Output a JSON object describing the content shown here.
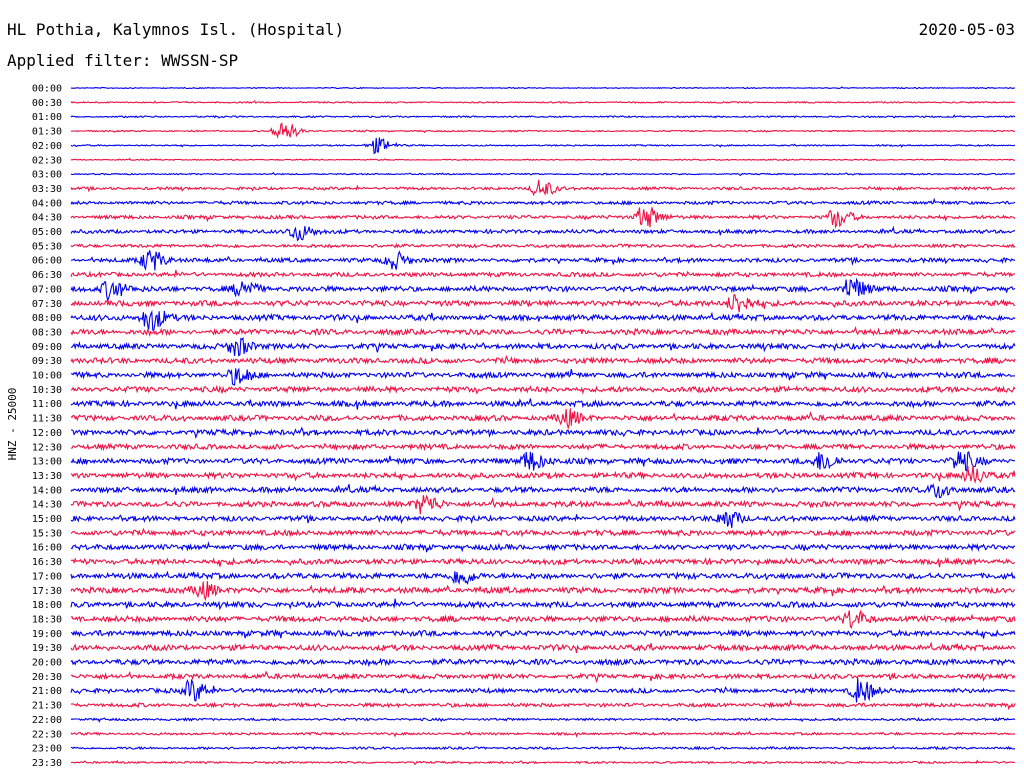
{
  "header": {
    "station": "HL Pothia, Kalymnos Isl. (Hospital)",
    "date": "2020-05-03",
    "filter": "Applied filter: WWSSN-SP"
  },
  "chart_data": {
    "type": "line",
    "title": "HL Pothia, Kalymnos Isl. (Hospital)",
    "subtitle": "Applied filter: WWSSN-SP",
    "ylabel": "HNZ - 25000",
    "xlabel": "",
    "colors": [
      "#0000ee",
      "#ee1144"
    ],
    "rows": [
      "00:00",
      "00:30",
      "01:00",
      "01:30",
      "02:00",
      "02:30",
      "03:00",
      "03:30",
      "04:00",
      "04:30",
      "05:00",
      "05:30",
      "06:00",
      "06:30",
      "07:00",
      "07:30",
      "08:00",
      "08:30",
      "09:00",
      "09:30",
      "10:00",
      "10:30",
      "11:00",
      "11:30",
      "12:00",
      "12:30",
      "13:00",
      "13:30",
      "14:00",
      "14:30",
      "15:00",
      "15:30",
      "16:00",
      "16:30",
      "17:00",
      "17:30",
      "18:00",
      "18:30",
      "19:00",
      "19:30",
      "20:00",
      "20:30",
      "21:00",
      "21:30",
      "22:00",
      "22:30",
      "23:00",
      "23:30"
    ],
    "noise": [
      0.5,
      0.7,
      0.8,
      0.7,
      0.7,
      0.6,
      0.7,
      1.4,
      1.7,
      1.8,
      1.9,
      1.7,
      2.1,
      2.2,
      2.7,
      2.8,
      2.8,
      2.8,
      2.8,
      2.8,
      2.8,
      2.8,
      2.8,
      2.8,
      2.8,
      2.6,
      2.8,
      2.8,
      2.8,
      2.8,
      2.6,
      2.8,
      2.7,
      2.8,
      2.9,
      2.9,
      2.8,
      2.9,
      2.8,
      2.8,
      2.8,
      2.4,
      2.2,
      1.9,
      1.2,
      1.2,
      1.2,
      1.0
    ],
    "events": [
      {
        "row": 3,
        "x": 0.222,
        "amp": 11
      },
      {
        "row": 4,
        "x": 0.322,
        "amp": 8
      },
      {
        "row": 7,
        "x": 0.495,
        "amp": 9
      },
      {
        "row": 9,
        "x": 0.606,
        "amp": 12
      },
      {
        "row": 9,
        "x": 0.809,
        "amp": 9
      },
      {
        "row": 10,
        "x": 0.238,
        "amp": 9
      },
      {
        "row": 12,
        "x": 0.082,
        "amp": 11
      },
      {
        "row": 12,
        "x": 0.34,
        "amp": 9
      },
      {
        "row": 14,
        "x": 0.04,
        "amp": 10
      },
      {
        "row": 14,
        "x": 0.18,
        "amp": 8
      },
      {
        "row": 14,
        "x": 0.824,
        "amp": 11
      },
      {
        "row": 15,
        "x": 0.703,
        "amp": 10
      },
      {
        "row": 16,
        "x": 0.082,
        "amp": 12
      },
      {
        "row": 18,
        "x": 0.174,
        "amp": 9
      },
      {
        "row": 20,
        "x": 0.174,
        "amp": 8
      },
      {
        "row": 23,
        "x": 0.523,
        "amp": 8
      },
      {
        "row": 26,
        "x": 0.484,
        "amp": 10
      },
      {
        "row": 26,
        "x": 0.795,
        "amp": 9
      },
      {
        "row": 26,
        "x": 0.94,
        "amp": 10
      },
      {
        "row": 27,
        "x": 0.953,
        "amp": 9
      },
      {
        "row": 28,
        "x": 0.918,
        "amp": 7
      },
      {
        "row": 29,
        "x": 0.373,
        "amp": 9
      },
      {
        "row": 30,
        "x": 0.693,
        "amp": 9
      },
      {
        "row": 34,
        "x": 0.411,
        "amp": 8
      },
      {
        "row": 35,
        "x": 0.138,
        "amp": 8
      },
      {
        "row": 37,
        "x": 0.826,
        "amp": 8
      },
      {
        "row": 42,
        "x": 0.127,
        "amp": 11
      },
      {
        "row": 42,
        "x": 0.833,
        "amp": 12
      }
    ]
  }
}
